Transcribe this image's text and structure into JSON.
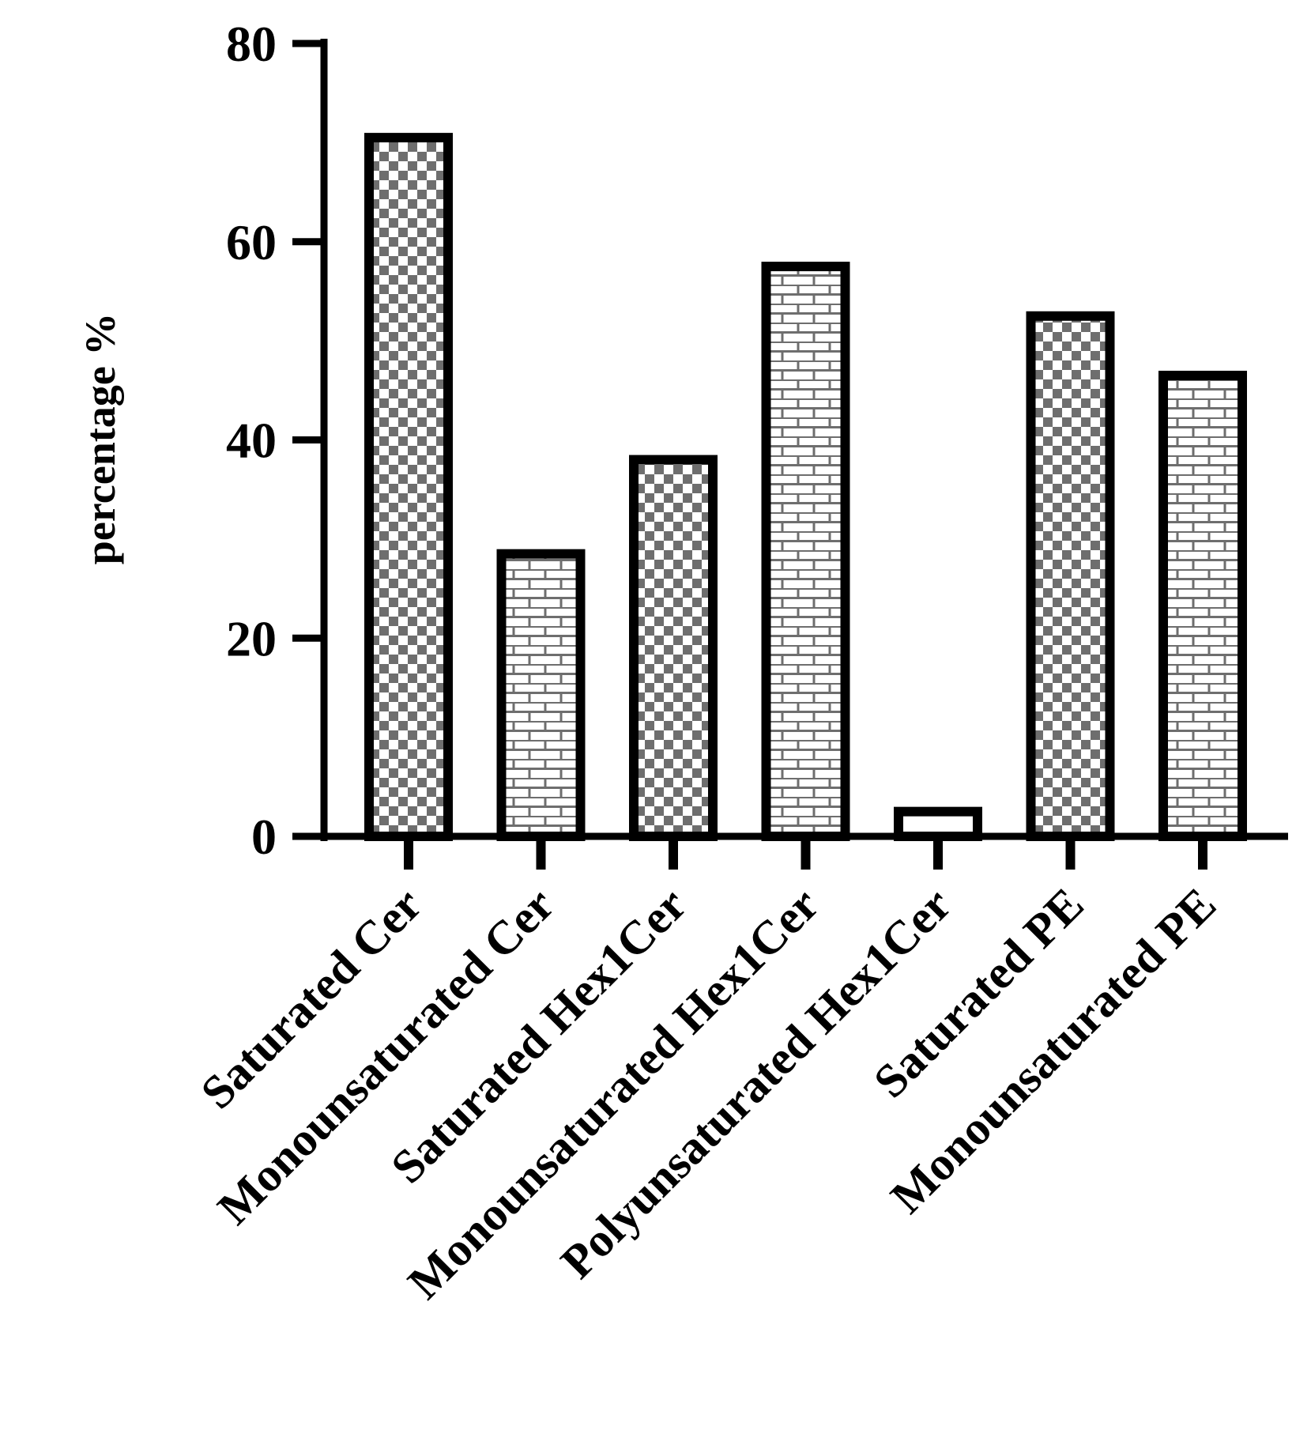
{
  "chart_data": {
    "type": "bar",
    "title": "",
    "xlabel": "",
    "ylabel": "percentage %",
    "ylim": [
      0,
      80
    ],
    "yticks": [
      0,
      20,
      40,
      60,
      80
    ],
    "grid": false,
    "categories": [
      "Saturated Cer",
      "Monounsaturated Cer",
      "Saturated Hex1Cer",
      "Monounsaturated Hex1Cer",
      "Polyunsaturated Hex1Cer",
      "Saturated PE",
      "Monounsaturated PE"
    ],
    "values": [
      70.5,
      28.5,
      38,
      57.5,
      2.5,
      52.5,
      46.5
    ],
    "patterns": [
      "checker",
      "brick",
      "checker",
      "brick",
      "none",
      "checker",
      "brick"
    ],
    "colors": {
      "axis": "#000000",
      "checker": "#6e6e6e",
      "brick": "#6e6e6e",
      "fill": "#ffffff"
    }
  }
}
